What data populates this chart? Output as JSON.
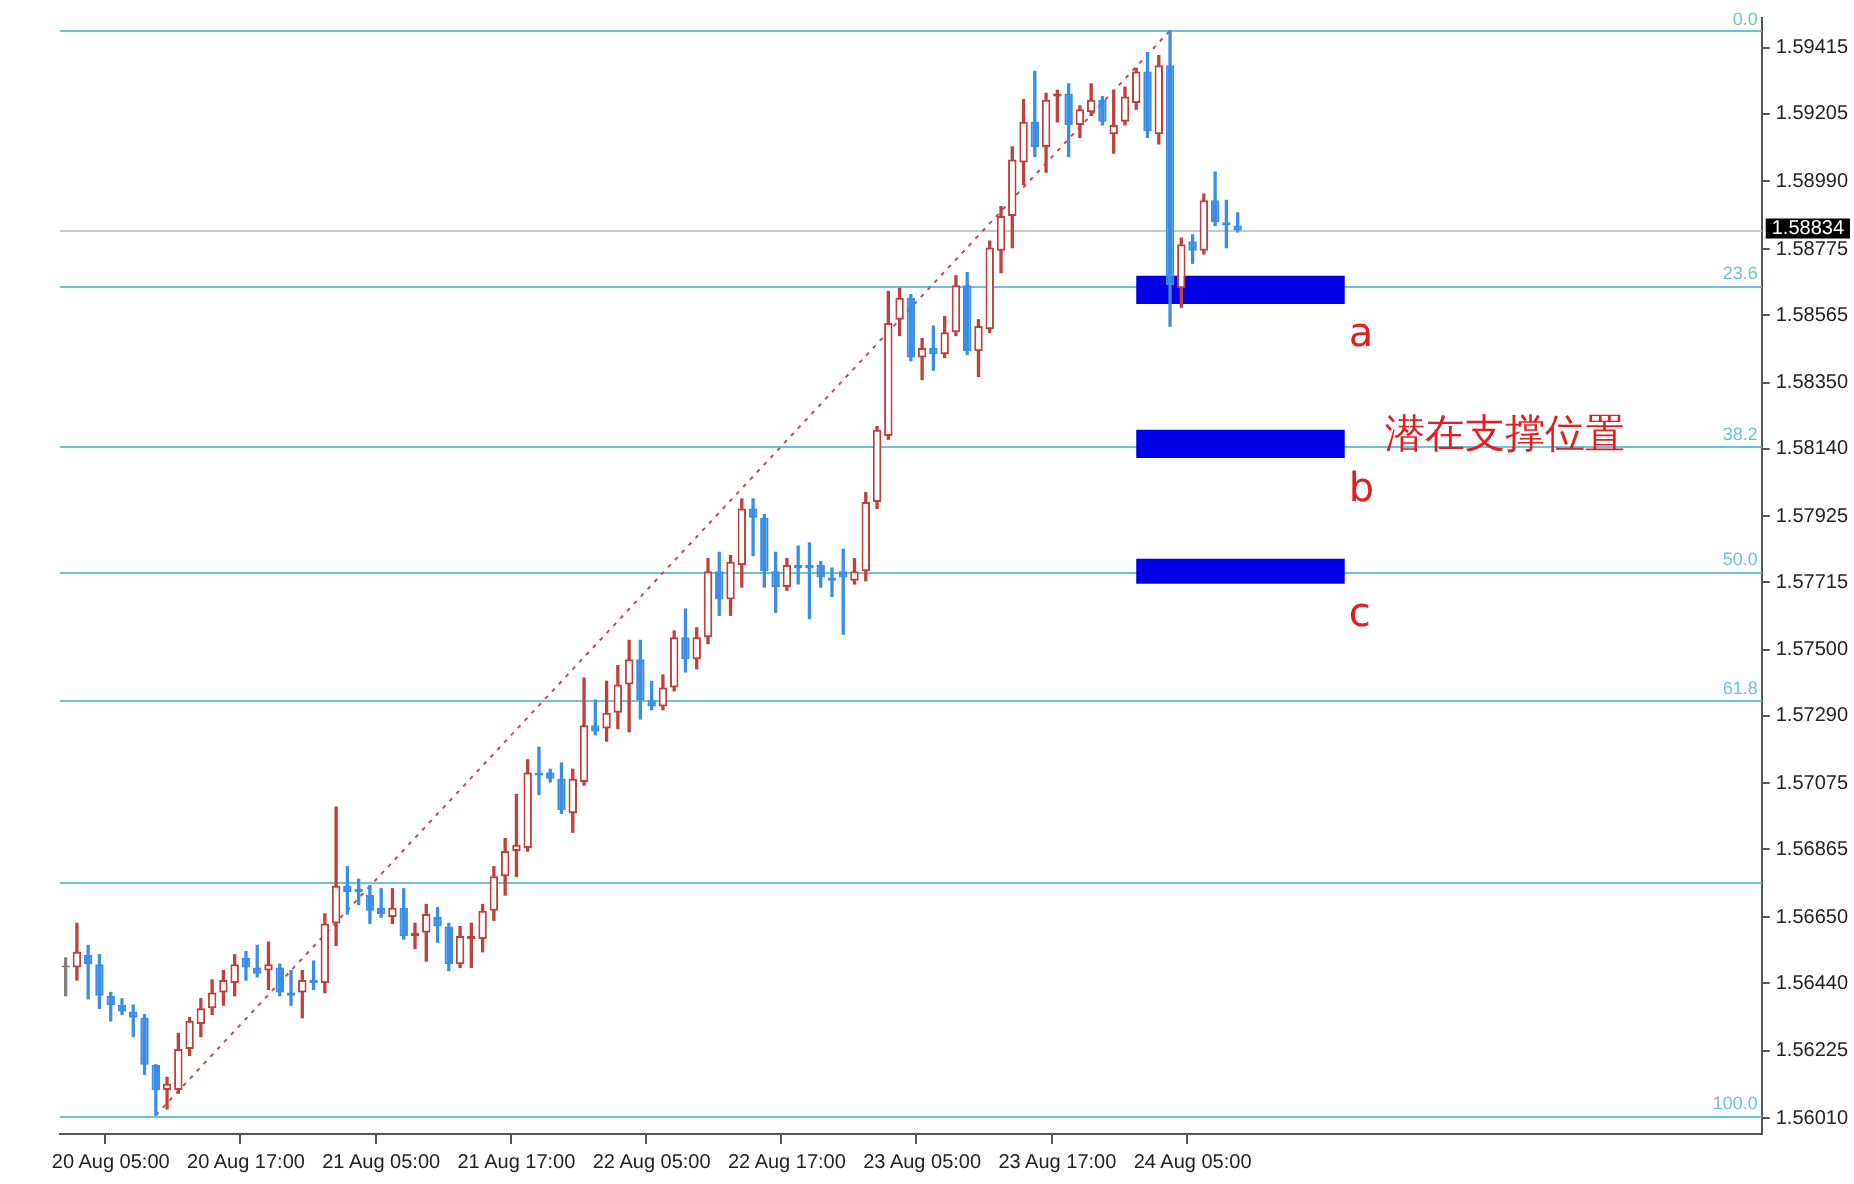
{
  "chart_data": {
    "type": "candlestick",
    "categories": [
      null,
      null,
      null,
      null,
      "20 Aug 05:00",
      null,
      null,
      null,
      null,
      null,
      null,
      null,
      null,
      null,
      null,
      null,
      "20 Aug 17:00",
      null,
      null,
      null,
      null,
      null,
      null,
      null,
      null,
      null,
      null,
      null,
      "21 Aug 05:00",
      null,
      null,
      null,
      null,
      null,
      null,
      null,
      null,
      null,
      null,
      null,
      "21 Aug 17:00",
      null,
      null,
      null,
      null,
      null,
      null,
      null,
      null,
      null,
      null,
      null,
      "22 Aug 05:00",
      null,
      null,
      null,
      null,
      null,
      null,
      null,
      null,
      null,
      null,
      null,
      "22 Aug 17:00",
      null,
      null,
      null,
      null,
      null,
      null,
      null,
      null,
      null,
      null,
      null,
      "23 Aug 05:00",
      null,
      null,
      null,
      null,
      null,
      null,
      null,
      null,
      null,
      null,
      null,
      "23 Aug 17:00",
      null,
      null,
      null,
      null,
      null,
      null,
      null,
      null,
      null,
      null,
      null,
      "24 Aug 05:00",
      null,
      null,
      null,
      null,
      null,
      null,
      null,
      null,
      null,
      null,
      null,
      null,
      null,
      null,
      null,
      null,
      null,
      null,
      null,
      null,
      null,
      null,
      null,
      null,
      null,
      null,
      null,
      null,
      null,
      null,
      null,
      null,
      null,
      null,
      null,
      null,
      null,
      null,
      null,
      null,
      null,
      null,
      null,
      null,
      null,
      null,
      null,
      null,
      null,
      null
    ],
    "ohlc": [
      [
        1.5649,
        1.5652,
        1.564,
        1.5649
      ],
      [
        1.5649,
        1.5663,
        1.5645,
        1.5654
      ],
      [
        1.5653,
        1.5656,
        1.5639,
        1.565
      ],
      [
        1.565,
        1.5653,
        1.5636,
        1.564
      ],
      [
        1.564,
        1.5641,
        1.5632,
        1.5637
      ],
      [
        1.5637,
        1.5639,
        1.5634,
        1.5635
      ],
      [
        1.5635,
        1.5637,
        1.5627,
        1.5633
      ],
      [
        1.5633,
        1.5634,
        1.5615,
        1.5618
      ],
      [
        1.5618,
        1.5618,
        1.5602,
        1.561
      ],
      [
        1.561,
        1.5614,
        1.5604,
        1.5612
      ],
      [
        1.561,
        1.5628,
        1.5609,
        1.5623
      ],
      [
        1.5623,
        1.5633,
        1.5621,
        1.5632
      ],
      [
        1.5631,
        1.5639,
        1.5627,
        1.5636
      ],
      [
        1.5636,
        1.5645,
        1.5634,
        1.5641
      ],
      [
        1.5641,
        1.5648,
        1.5637,
        1.5645
      ],
      [
        1.5644,
        1.5653,
        1.564,
        1.565
      ],
      [
        1.5652,
        1.5654,
        1.5645,
        1.5649
      ],
      [
        1.5649,
        1.5656,
        1.5646,
        1.5647
      ],
      [
        1.5648,
        1.5657,
        1.5642,
        1.565
      ],
      [
        1.5649,
        1.565,
        1.564,
        1.5641
      ],
      [
        1.5641,
        1.5648,
        1.5637,
        1.564
      ],
      [
        1.5641,
        1.5648,
        1.5633,
        1.5645
      ],
      [
        1.5645,
        1.5651,
        1.5642,
        1.5644
      ],
      [
        1.5644,
        1.5666,
        1.5641,
        1.5663
      ],
      [
        1.5663,
        1.57,
        1.5656,
        1.5675
      ],
      [
        1.5675,
        1.5681,
        1.5666,
        1.5673
      ],
      [
        1.5674,
        1.5677,
        1.5669,
        1.5673
      ],
      [
        1.5672,
        1.5675,
        1.5663,
        1.5667
      ],
      [
        1.5668,
        1.5674,
        1.5665,
        1.5666
      ],
      [
        1.5665,
        1.5674,
        1.5663,
        1.5668
      ],
      [
        1.5668,
        1.5674,
        1.5658,
        1.5659
      ],
      [
        1.5659,
        1.5663,
        1.5655,
        1.566
      ],
      [
        1.566,
        1.5669,
        1.5651,
        1.5666
      ],
      [
        1.5665,
        1.5668,
        1.5657,
        1.5662
      ],
      [
        1.5662,
        1.5663,
        1.5648,
        1.565
      ],
      [
        1.565,
        1.5662,
        1.5649,
        1.5659
      ],
      [
        1.5658,
        1.5663,
        1.5649,
        1.5659
      ],
      [
        1.5658,
        1.5669,
        1.5654,
        1.5667
      ],
      [
        1.5667,
        1.5681,
        1.5664,
        1.5678
      ],
      [
        1.5678,
        1.569,
        1.5672,
        1.5686
      ],
      [
        1.5686,
        1.5704,
        1.5678,
        1.5688
      ],
      [
        1.5687,
        1.5715,
        1.5686,
        1.5711
      ],
      [
        1.5711,
        1.5719,
        1.5704,
        1.571
      ],
      [
        1.5711,
        1.5712,
        1.5708,
        1.5709
      ],
      [
        1.5709,
        1.5714,
        1.5698,
        1.5699
      ],
      [
        1.5698,
        1.5712,
        1.5692,
        1.5709
      ],
      [
        1.5708,
        1.5741,
        1.5707,
        1.5726
      ],
      [
        1.5726,
        1.5734,
        1.5723,
        1.5724
      ],
      [
        1.5725,
        1.574,
        1.5721,
        1.573
      ],
      [
        1.573,
        1.5745,
        1.5725,
        1.5739
      ],
      [
        1.5739,
        1.5753,
        1.5724,
        1.5747
      ],
      [
        1.5747,
        1.5753,
        1.5728,
        1.5734
      ],
      [
        1.5734,
        1.574,
        1.5731,
        1.5732
      ],
      [
        1.5732,
        1.5742,
        1.5731,
        1.5738
      ],
      [
        1.5738,
        1.5756,
        1.5737,
        1.5754
      ],
      [
        1.5754,
        1.5763,
        1.5743,
        1.5747
      ],
      [
        1.5747,
        1.5757,
        1.5744,
        1.5754
      ],
      [
        1.5754,
        1.5779,
        1.5752,
        1.5775
      ],
      [
        1.5775,
        1.5781,
        1.5761,
        1.5766
      ],
      [
        1.5766,
        1.578,
        1.5761,
        1.5778
      ],
      [
        1.5777,
        1.5798,
        1.577,
        1.5795
      ],
      [
        1.5795,
        1.5798,
        1.578,
        1.5792
      ],
      [
        1.5792,
        1.5793,
        1.577,
        1.5775
      ],
      [
        1.5775,
        1.5781,
        1.5762,
        1.577
      ],
      [
        1.577,
        1.5779,
        1.5769,
        1.5777
      ],
      [
        1.5777,
        1.5783,
        1.5771,
        1.5776
      ],
      [
        1.5777,
        1.5784,
        1.576,
        1.5776
      ],
      [
        1.5777,
        1.5778,
        1.577,
        1.5773
      ],
      [
        1.5773,
        1.5776,
        1.5767,
        1.5772
      ],
      [
        1.5775,
        1.5782,
        1.5755,
        1.5773
      ],
      [
        1.5772,
        1.5779,
        1.5771,
        1.5775
      ],
      [
        1.5775,
        1.58,
        1.5772,
        1.5797
      ],
      [
        1.5797,
        1.5821,
        1.5795,
        1.582
      ],
      [
        1.5818,
        1.5864,
        1.5817,
        1.5854
      ],
      [
        1.5855,
        1.5865,
        1.585,
        1.5862
      ],
      [
        1.5862,
        1.5863,
        1.5842,
        1.5843
      ],
      [
        1.5843,
        1.5849,
        1.5836,
        1.5846
      ],
      [
        1.5846,
        1.5853,
        1.5839,
        1.5844
      ],
      [
        1.5844,
        1.5856,
        1.5843,
        1.5851
      ],
      [
        1.5851,
        1.5869,
        1.585,
        1.5866
      ],
      [
        1.5866,
        1.587,
        1.5844,
        1.5845
      ],
      [
        1.5845,
        1.5855,
        1.5837,
        1.5853
      ],
      [
        1.5852,
        1.588,
        1.5851,
        1.5878
      ],
      [
        1.5877,
        1.5891,
        1.587,
        1.5888
      ],
      [
        1.5888,
        1.591,
        1.5878,
        1.5906
      ],
      [
        1.5905,
        1.5925,
        1.5898,
        1.5918
      ],
      [
        1.5918,
        1.5934,
        1.5907,
        1.591
      ],
      [
        1.591,
        1.5927,
        1.5902,
        1.5925
      ],
      [
        1.5926,
        1.5928,
        1.5918,
        1.5927
      ],
      [
        1.5927,
        1.593,
        1.5907,
        1.5917
      ],
      [
        1.5917,
        1.5923,
        1.5913,
        1.5922
      ],
      [
        1.5921,
        1.593,
        1.592,
        1.5925
      ],
      [
        1.5925,
        1.5926,
        1.5917,
        1.5918
      ],
      [
        1.5914,
        1.5928,
        1.5908,
        1.5917
      ],
      [
        1.5918,
        1.5929,
        1.5917,
        1.5926
      ],
      [
        1.5924,
        1.5935,
        1.5922,
        1.5934
      ],
      [
        1.5934,
        1.594,
        1.5913,
        1.5915
      ],
      [
        1.5914,
        1.5939,
        1.5911,
        1.5936
      ],
      [
        1.5936,
        1.5947,
        1.5853,
        1.5866
      ],
      [
        1.5865,
        1.5881,
        1.5859,
        1.5879
      ],
      [
        1.588,
        1.5882,
        1.5873,
        1.5877
      ],
      [
        1.5877,
        1.5895,
        1.5876,
        1.5893
      ],
      [
        1.5893,
        1.5902,
        1.5885,
        1.5886
      ],
      [
        1.5886,
        1.5893,
        1.5878,
        1.5885
      ],
      [
        1.5885,
        1.5889,
        1.5883,
        1.58834
      ],
      null,
      null,
      null,
      null,
      null,
      null,
      null,
      null,
      null,
      null,
      null,
      null,
      null,
      null,
      null,
      null,
      null,
      null,
      null,
      null,
      null,
      null,
      null,
      null,
      null,
      null,
      null,
      null,
      null,
      null,
      null,
      null,
      null,
      null,
      null,
      null,
      null,
      null,
      null,
      null,
      null,
      null,
      null,
      null,
      null,
      null
    ],
    "series": [
      {
        "type": "line",
        "color": "#c0504d",
        "line_style": "dotted",
        "values": [
          null,
          null,
          null,
          null,
          null,
          null,
          null,
          null,
          1.5602,
          null,
          null,
          null,
          null,
          null,
          null,
          null,
          null,
          null,
          null,
          null,
          null,
          null,
          null,
          null,
          null,
          null,
          null,
          null,
          null,
          null,
          null,
          null,
          null,
          null,
          null,
          null,
          null,
          null,
          null,
          null,
          null,
          null,
          null,
          null,
          null,
          null,
          null,
          null,
          null,
          null,
          null,
          null,
          null,
          null,
          null,
          null,
          null,
          null,
          null,
          null,
          null,
          null,
          null,
          null,
          null,
          null,
          null,
          null,
          null,
          null,
          null,
          null,
          null,
          null,
          null,
          null,
          null,
          null,
          null,
          null,
          null,
          null,
          null,
          null,
          null,
          null,
          null,
          null,
          null,
          null,
          null,
          null,
          null,
          null,
          null,
          null,
          null,
          null,
          1.5947,
          null,
          null,
          null,
          null,
          null,
          null,
          null,
          null,
          null,
          null,
          null,
          null,
          null,
          null,
          null,
          null,
          null,
          null,
          null,
          null,
          null,
          null,
          null,
          null,
          null,
          null,
          null,
          null,
          null,
          null,
          null,
          null,
          null,
          null,
          null,
          null,
          null,
          null,
          null,
          null,
          null,
          null,
          null,
          null,
          null,
          null,
          null,
          null,
          null,
          null,
          null,
          null
        ]
      }
    ],
    "ylim": [
      1.5596,
      1.5951
    ],
    "yticks": [
      {
        "value": 1.5601,
        "label": "1.56010"
      },
      1.56225,
      {
        "value": 1.5644,
        "label": "1.56440"
      },
      {
        "value": 1.5665,
        "label": "1.56650"
      },
      1.56865,
      1.57075,
      {
        "value": 1.5729,
        "label": "1.57290"
      },
      {
        "value": 1.575,
        "label": "1.57500"
      },
      1.57715,
      1.57925,
      {
        "value": 1.5814,
        "label": "1.58140"
      },
      {
        "value": 1.5835,
        "label": "1.58350"
      },
      1.58565,
      1.58775,
      {
        "value": 1.5899,
        "label": "1.58990"
      },
      1.59205,
      1.59415
    ],
    "ref_lines": [
      {
        "axis": "y",
        "value": 1.5947,
        "color": "#6cc3d5"
      },
      {
        "axis": "y",
        "value": 1.5866,
        "color": "#6cc3d5"
      },
      {
        "axis": "y",
        "value": 1.5815,
        "color": "#6cc3d5"
      },
      {
        "axis": "y",
        "value": 1.5775,
        "color": "#6cc3d5"
      },
      {
        "axis": "y",
        "value": 1.5734,
        "color": "#6cc3d5"
      },
      {
        "axis": "y",
        "value": 1.5676,
        "color": "#6cc3d5"
      },
      {
        "axis": "y",
        "value": 1.5602,
        "color": "#6cc3d5"
      },
      {
        "axis": "y",
        "value": 1.58834,
        "label": "1.58834",
        "color": "#c8c8c8"
      }
    ],
    "bands": [
      {
        "axis": "y",
        "from": 1.586,
        "to": 1.5869,
        "label": "a",
        "color": "#0000e6"
      },
      {
        "axis": "y",
        "from": 1.5811,
        "to": 1.582,
        "label": "b",
        "color": "#0000e6"
      },
      {
        "axis": "y",
        "from": 1.5771,
        "to": 1.5779,
        "label": "c",
        "color": "#0000e6"
      }
    ],
    "annotations": [
      "潜在支撑位置",
      {
        "text": "0.0",
        "y": 1.5947
      },
      {
        "text": "23.6",
        "y": 1.5866
      },
      {
        "text": "38.2",
        "y": 1.5815
      },
      {
        "text": "50.0",
        "y": 1.5775
      },
      {
        "text": "61.8",
        "y": 1.5734
      },
      {
        "text": "100.0",
        "y": 1.5602
      }
    ]
  }
}
